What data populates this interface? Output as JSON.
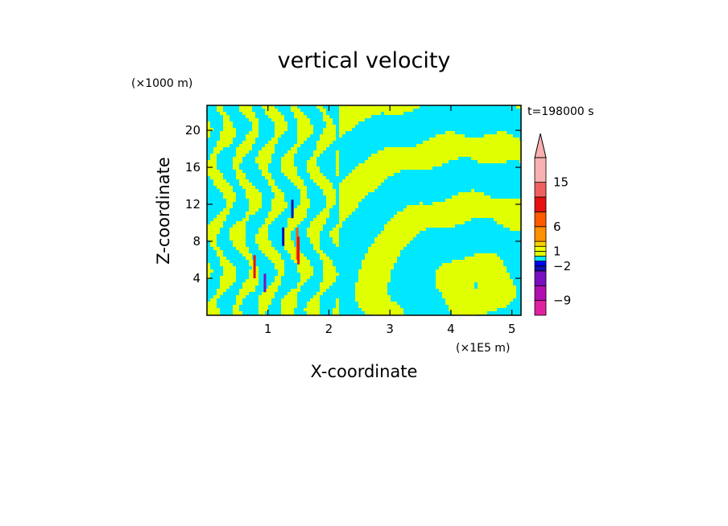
{
  "chart_data": {
    "type": "heatmap",
    "title": "vertical velocity",
    "xlabel": "X-coordinate",
    "ylabel": "Z-coordinate",
    "x_unit": "(×1E5 m)",
    "y_unit": "(×1000 m)",
    "time_label": "t=198000 s",
    "xlim": [
      0,
      5.15
    ],
    "ylim": [
      0,
      22.7
    ],
    "xticks": [
      1,
      2,
      3,
      4,
      5
    ],
    "yticks": [
      4,
      8,
      12,
      16,
      20
    ],
    "colorbar": {
      "tick_labels": [
        "15",
        "6",
        "1",
        "−2",
        "−9"
      ],
      "tick_values": [
        15,
        6,
        1,
        -2,
        -9
      ],
      "levels": [
        -12,
        -9,
        -6,
        -3,
        -2,
        -1,
        0,
        1,
        2,
        3,
        6,
        9,
        12,
        15,
        20
      ],
      "colors": [
        "#e020a0",
        "#b010b0",
        "#7a10c0",
        "#1010b0",
        "#0000ff",
        "#00e8ff",
        "#e0ff00",
        "#f0ff00",
        "#ffd000",
        "#ff9000",
        "#ff5a00",
        "#e81010",
        "#f06060",
        "#f8b0b0"
      ],
      "extend": "max"
    },
    "dominant_levels": {
      "negative_weak": "#00e8ff",
      "positive_weak": "#e0ff00"
    }
  }
}
